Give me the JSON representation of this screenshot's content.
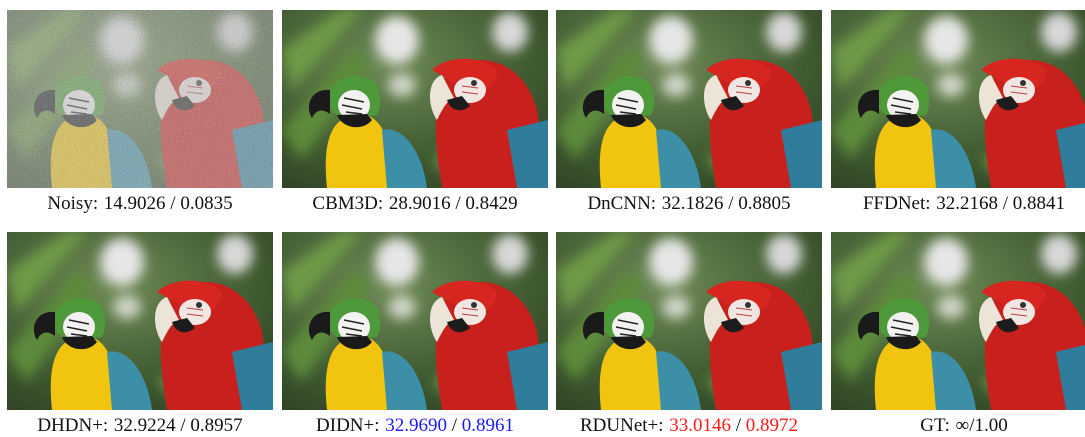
{
  "panels": [
    {
      "method": "Noisy:",
      "psnr": "14.9026",
      "separator": " / ",
      "ssim": "0.0835",
      "noisy": true
    },
    {
      "method": "CBM3D:",
      "psnr": "28.9016",
      "separator": " / ",
      "ssim": "0.8429"
    },
    {
      "method": "DnCNN:",
      "psnr": "32.1826",
      "separator": " / ",
      "ssim": "0.8805"
    },
    {
      "method": "FFDNet:",
      "psnr": "32.2168",
      "separator": " / ",
      "ssim": "0.8841"
    },
    {
      "method": "DHDN+:",
      "psnr": "32.9224",
      "separator": " / ",
      "ssim": "0.8957"
    },
    {
      "method": "DIDN+:",
      "psnr": "32.9690",
      "separator": " / ",
      "ssim": "0.8961",
      "highlight": "#1a1aff"
    },
    {
      "method": "RDUNet+:",
      "psnr": "33.0146",
      "separator": " / ",
      "ssim": "0.8972",
      "highlight": "#ff1a1a"
    },
    {
      "method": "GT:",
      "psnr": "∞",
      "separator": "/",
      "ssim": "1.00"
    }
  ]
}
